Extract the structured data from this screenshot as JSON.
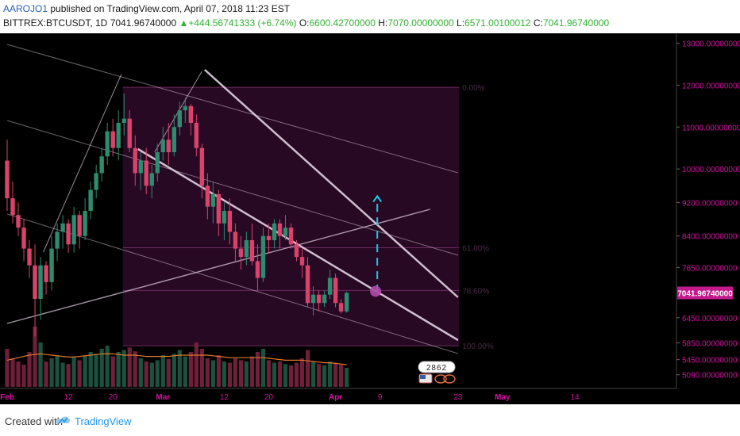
{
  "header": {
    "author": "AAROJO1",
    "published": "published on TradingView.com, April 07, 2018 11:23 EST",
    "symbol": "BITTREX:BTCUSDT, 1D",
    "last": "7041.96740000",
    "change": "+444.56741333 (+6.74%)",
    "open_label": "O:",
    "open": "6600.42700000",
    "high_label": "H:",
    "high": "7070.00000000",
    "low_label": "L:",
    "low": "6571.00100012",
    "close_label": "C:",
    "close": "7041.96740000"
  },
  "footer": {
    "created_with": "Created with",
    "brand": "TradingView"
  },
  "colors": {
    "background": "#000000",
    "up": "#2e8b6e",
    "down": "#d9436b",
    "axis_text": "#d40fa0",
    "fib_box": "#2a0a26",
    "trendline": "#d8c8d8",
    "projection": "#1ec8e6",
    "volume_ma": "#e07828",
    "price_tag": "#c21a8c"
  },
  "chart_data": {
    "type": "candlestick",
    "title": "",
    "ylim": [
      4800,
      13200
    ],
    "y_ticks": [
      13000,
      12000,
      11000,
      10000,
      9200,
      8400,
      7650,
      6450,
      5850,
      5450,
      5090
    ],
    "y_tick_labels": [
      "13000.00000000",
      "12000.00000000",
      "11000.00000000",
      "10000.00000000",
      "9200.00000000",
      "8400.00000000",
      "7650.00000000",
      "6450.00000000",
      "5850.00000000",
      "5450.00000000",
      "5090.00000000"
    ],
    "x_tick_labels": [
      "Feb",
      "12",
      "20",
      "Mar",
      "12",
      "20",
      "Apr",
      "9",
      "23",
      "May",
      "14"
    ],
    "x_tick_days": [
      0,
      11,
      19,
      28,
      39,
      47,
      59,
      67,
      81,
      89,
      102
    ],
    "x_tick_months": [
      "Feb",
      "Mar",
      "Apr",
      "May"
    ],
    "last_price_label": "7041.96740000",
    "last_price": 7041.9674,
    "fib_levels": [
      {
        "label": "0.00%",
        "value": 11950
      },
      {
        "label": "61.80%",
        "value": 8120
      },
      {
        "label": "78.60%",
        "value": 7100
      },
      {
        "label": "100.00%",
        "value": 5780
      }
    ],
    "indicator_badge": "2862",
    "candles": [
      [
        10200,
        10700,
        9000,
        9300
      ],
      [
        9300,
        9700,
        8700,
        8900
      ],
      [
        8900,
        9200,
        8400,
        8600
      ],
      [
        8600,
        8800,
        7800,
        8100
      ],
      [
        8100,
        8300,
        7400,
        7700
      ],
      [
        7700,
        8200,
        6000,
        6900
      ],
      [
        6900,
        7900,
        6400,
        7700
      ],
      [
        7700,
        7800,
        7000,
        7300
      ],
      [
        7300,
        8400,
        7100,
        8100
      ],
      [
        8100,
        8700,
        7800,
        8500
      ],
      [
        8500,
        8900,
        8100,
        8700
      ],
      [
        8700,
        8800,
        8000,
        8200
      ],
      [
        8200,
        9100,
        8000,
        8900
      ],
      [
        8900,
        9000,
        8100,
        8400
      ],
      [
        8400,
        9300,
        8300,
        9000
      ],
      [
        9000,
        9700,
        8800,
        9500
      ],
      [
        9500,
        10100,
        9300,
        9900
      ],
      [
        9900,
        10500,
        9700,
        10300
      ],
      [
        10300,
        11100,
        10100,
        10900
      ],
      [
        10900,
        11200,
        10300,
        10500
      ],
      [
        10500,
        11400,
        10200,
        11100
      ],
      [
        11100,
        11800,
        10800,
        11200
      ],
      [
        11200,
        11400,
        10400,
        10500
      ],
      [
        10500,
        10800,
        9600,
        9900
      ],
      [
        9900,
        10400,
        9500,
        10200
      ],
      [
        10200,
        10500,
        9400,
        9600
      ],
      [
        9600,
        10100,
        9300,
        9900
      ],
      [
        9900,
        10600,
        9700,
        10400
      ],
      [
        10400,
        11000,
        10200,
        10700
      ],
      [
        10700,
        11100,
        10100,
        10400
      ],
      [
        10400,
        11300,
        10300,
        11000
      ],
      [
        11000,
        11600,
        10800,
        11400
      ],
      [
        11400,
        11700,
        11100,
        11500
      ],
      [
        11500,
        11550,
        10800,
        11100
      ],
      [
        11100,
        11300,
        10300,
        10500
      ],
      [
        10500,
        10600,
        9300,
        9600
      ],
      [
        9600,
        9900,
        8800,
        9100
      ],
      [
        9100,
        9700,
        8700,
        9400
      ],
      [
        9400,
        9500,
        8400,
        8700
      ],
      [
        8700,
        9200,
        8300,
        9000
      ],
      [
        9000,
        9300,
        8200,
        8500
      ],
      [
        8500,
        8700,
        7800,
        8100
      ],
      [
        8100,
        8400,
        7600,
        7900
      ],
      [
        7900,
        8500,
        7700,
        8300
      ],
      [
        8300,
        8700,
        7700,
        7800
      ],
      [
        7800,
        8200,
        7100,
        7400
      ],
      [
        7400,
        8600,
        7300,
        8400
      ],
      [
        8400,
        8700,
        8000,
        8300
      ],
      [
        8300,
        8800,
        8100,
        8700
      ],
      [
        8700,
        8800,
        8100,
        8400
      ],
      [
        8400,
        8900,
        8300,
        8600
      ],
      [
        8600,
        8700,
        8100,
        8200
      ],
      [
        8200,
        8300,
        7800,
        7900
      ],
      [
        7900,
        8100,
        7400,
        7700
      ],
      [
        7700,
        7900,
        6700,
        6800
      ],
      [
        6800,
        7200,
        6500,
        7000
      ],
      [
        7000,
        7100,
        6600,
        6800
      ],
      [
        6800,
        7100,
        6700,
        7000
      ],
      [
        7000,
        7600,
        6900,
        7400
      ],
      [
        7400,
        7500,
        6700,
        6800
      ],
      [
        6800,
        6900,
        6550,
        6600
      ],
      [
        6600,
        7070,
        6571,
        7042
      ]
    ],
    "volumes": [
      60,
      45,
      40,
      35,
      55,
      95,
      70,
      40,
      45,
      50,
      38,
      36,
      48,
      42,
      50,
      55,
      52,
      60,
      65,
      48,
      55,
      58,
      62,
      56,
      45,
      40,
      38,
      42,
      50,
      44,
      52,
      58,
      48,
      55,
      70,
      60,
      45,
      42,
      50,
      40,
      38,
      45,
      42,
      40,
      48,
      55,
      60,
      42,
      38,
      40,
      36,
      34,
      38,
      45,
      58,
      40,
      36,
      34,
      40,
      38,
      35,
      30
    ],
    "volume_ma": [
      42,
      44,
      46,
      48,
      50,
      51,
      52,
      51,
      50,
      49,
      48,
      47,
      47,
      48,
      49,
      50,
      51,
      52,
      52,
      52,
      51,
      50,
      50,
      50,
      49,
      48,
      48,
      48,
      48,
      48,
      49,
      50,
      50,
      50,
      50,
      50,
      50,
      49,
      48,
      47,
      46,
      46,
      46,
      46,
      46,
      46,
      46,
      45,
      44,
      43,
      42,
      42,
      42,
      42,
      41,
      40,
      39,
      38,
      38,
      37,
      36,
      35
    ]
  }
}
